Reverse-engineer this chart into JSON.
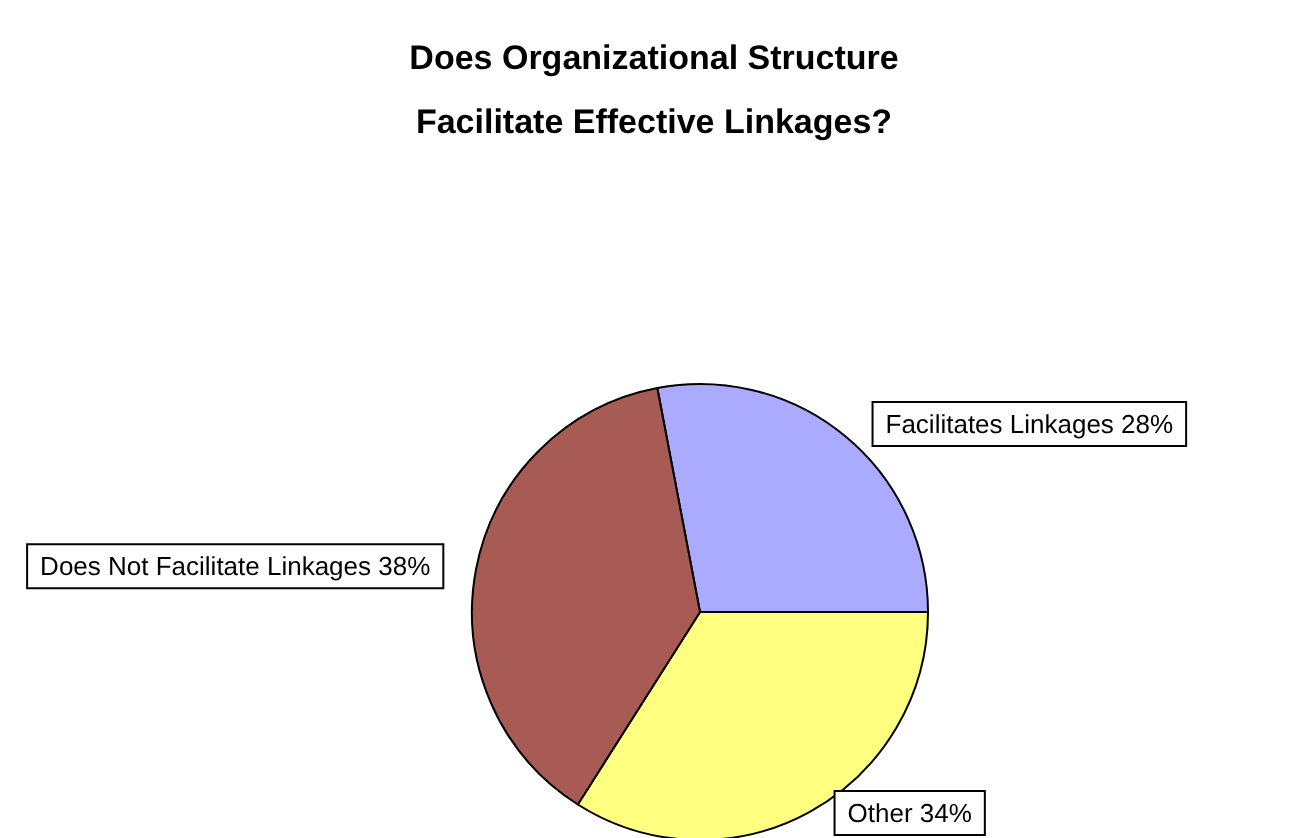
{
  "chart_data": {
    "type": "pie",
    "title": "Does Organizational Structure\nFacilitate Effective Linkages?",
    "categories": [
      "Facilitates Linkages",
      "Other",
      "Does Not Facilitate Linkages"
    ],
    "values": [
      28,
      34,
      38
    ],
    "value_labels": [
      "28%",
      "34%",
      "38%"
    ],
    "colors": [
      "#aaaaff",
      "#ffff80",
      "#a85a55"
    ],
    "legend": false
  }
}
